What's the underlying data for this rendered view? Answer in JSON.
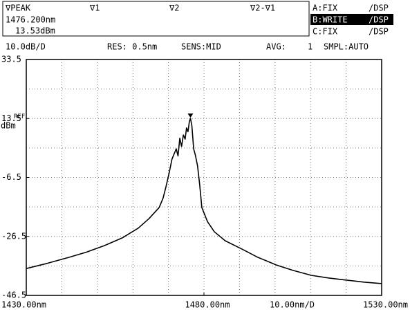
{
  "chart_data": {
    "type": "line",
    "header": {
      "marker_labels": [
        "∇PEAK",
        "∇1",
        "∇2",
        "∇2-∇1"
      ],
      "peak_wavelength": {
        "value": 1476.2,
        "label": "1476.200nm"
      },
      "peak_level": {
        "value": 13.53,
        "label": "13.53dBm"
      },
      "traces": [
        [
          "A:FIX",
          "/DSP"
        ],
        [
          "B:WRITE",
          "/DSP"
        ],
        [
          "C:FIX",
          "/DSP"
        ]
      ]
    },
    "status": [
      "10.0dB/D",
      "RES: 0.5nm",
      "SENS:MID",
      "AVG:",
      "1",
      "SMPL:AUTO"
    ],
    "ref_label": "REF",
    "y_unit": "dBm",
    "x_span_label": "10.00nm/D",
    "xlim": [
      1430,
      1530
    ],
    "xticks": [
      {
        "value": 1430,
        "label": "1430.00nm"
      },
      {
        "value": 1480,
        "label": "1480.00nm"
      },
      {
        "value": 1530,
        "label": "1530.00nm"
      }
    ],
    "ylim": [
      -46.5,
      33.5
    ],
    "yticks": [
      33.5,
      13.5,
      -6.5,
      -26.5,
      -46.5
    ],
    "series": [
      {
        "name": "B",
        "color": "#000000",
        "x": [
          1430,
          1436,
          1442,
          1447,
          1452,
          1457,
          1461.5,
          1464.5,
          1467.4,
          1468.5,
          1469.3,
          1470.2,
          1471,
          1471.6,
          1472.2,
          1472.7,
          1473.2,
          1473.7,
          1474.2,
          1474.7,
          1475.1,
          1475.5,
          1475.9,
          1476.2,
          1476.6,
          1477.1,
          1477.6,
          1478.2,
          1478.8,
          1479.4,
          1481,
          1482.9,
          1486,
          1490.7,
          1495,
          1500.4,
          1505,
          1510.2,
          1515,
          1519.9,
          1525,
          1530
        ],
        "values": [
          -37.4,
          -35.6,
          -33.6,
          -31.8,
          -29.6,
          -27,
          -23.7,
          -20.5,
          -16.7,
          -13.5,
          -9.7,
          -5,
          -0.3,
          1.5,
          3.2,
          0.8,
          6.8,
          4,
          7.9,
          6.5,
          10.3,
          9,
          12.5,
          13.53,
          11,
          3.2,
          1,
          -2.6,
          -9,
          -16.7,
          -21.5,
          -24.9,
          -28,
          -30.8,
          -33.5,
          -36.2,
          -38,
          -39.7,
          -40.6,
          -41.3,
          -42,
          -42.5
        ]
      }
    ]
  }
}
